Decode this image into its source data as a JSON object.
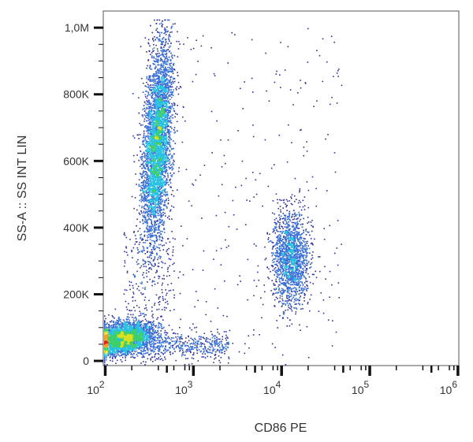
{
  "chart_data": {
    "type": "scatter",
    "subtype": "density-dot-plot",
    "xlabel": "CD86 PE",
    "ylabel": "SS-A :: SS INT LIN",
    "xscale": "log",
    "xlim": [
      95,
      1023000
    ],
    "ylim": [
      -14000,
      1050000
    ],
    "x_ticks": [
      {
        "value": 100,
        "base": "10",
        "exp": "2"
      },
      {
        "value": 1000,
        "base": "10",
        "exp": "3"
      },
      {
        "value": 10000,
        "base": "10",
        "exp": "4"
      },
      {
        "value": 100000,
        "base": "10",
        "exp": "5"
      },
      {
        "value": 1000000,
        "base": "10",
        "exp": "6"
      }
    ],
    "y_ticks": [
      {
        "value": 0,
        "label": "0"
      },
      {
        "value": 200000,
        "label": "200K"
      },
      {
        "value": 400000,
        "label": "400K"
      },
      {
        "value": 600000,
        "label": "600K"
      },
      {
        "value": 800000,
        "label": "800K"
      },
      {
        "value": 1000000,
        "label": "1,0M"
      }
    ],
    "grid": false,
    "colormap": [
      "#2b2fa0",
      "#3a6fd8",
      "#27c0e0",
      "#3fcf6a",
      "#d8e020",
      "#f5a020",
      "#e82020"
    ],
    "populations": [
      {
        "x_center": 400,
        "y_center": 650000,
        "y_range": [
          300000,
          1020000
        ],
        "relative_density": "high"
      },
      {
        "x_center": 160,
        "y_center": 70000,
        "y_range": [
          20000,
          140000
        ],
        "relative_density": "highest"
      },
      {
        "x_center": 12500,
        "y_center": 310000,
        "y_range": [
          150000,
          520000
        ],
        "relative_density": "medium"
      }
    ]
  }
}
